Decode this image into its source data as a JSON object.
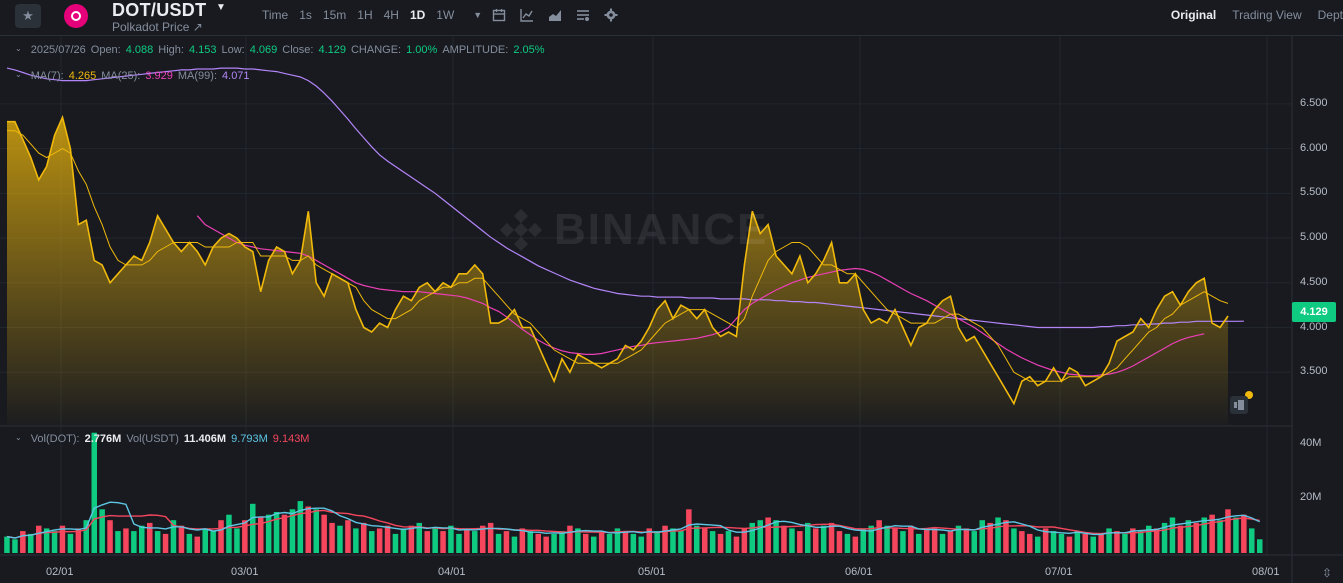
{
  "header": {
    "pair": "DOT/USDT",
    "subtitle": "Polkadot Price ↗",
    "intervals": [
      {
        "label": "Time",
        "active": false
      },
      {
        "label": "1s",
        "active": false
      },
      {
        "label": "15m",
        "active": false
      },
      {
        "label": "1H",
        "active": false
      },
      {
        "label": "4H",
        "active": false
      },
      {
        "label": "1D",
        "active": true
      },
      {
        "label": "1W",
        "active": false
      }
    ],
    "views": [
      {
        "label": "Original",
        "active": true
      },
      {
        "label": "Trading View",
        "active": false
      },
      {
        "label": "Dept",
        "active": false
      }
    ],
    "icons": [
      "star-icon",
      "calendar-icon",
      "indicator-icon",
      "chart-style-icon",
      "settings-list-icon",
      "gear-icon"
    ]
  },
  "ohlc": {
    "date": "2025/07/26",
    "open_label": "Open:",
    "open": "4.088",
    "high_label": "High:",
    "high": "4.153",
    "low_label": "Low:",
    "low": "4.069",
    "close_label": "Close:",
    "close": "4.129",
    "change_label": "CHANGE:",
    "change": "1.00%",
    "amplitude_label": "AMPLITUDE:",
    "amplitude": "2.05%"
  },
  "ma": {
    "ma7_label": "MA(7):",
    "ma7": "4.265",
    "ma25_label": "MA(25):",
    "ma25": "3.929",
    "ma99_label": "MA(99):",
    "ma99": "4.071"
  },
  "vol": {
    "dot_label": "Vol(DOT):",
    "dot": "2.776M",
    "usdt_label": "Vol(USDT)",
    "usdt": "11.406M",
    "ma1": "9.793M",
    "ma2": "9.143M"
  },
  "watermark": "BINANCE",
  "last_price": "4.129",
  "colors": {
    "up": "#0ecb81",
    "down": "#f6465d",
    "area": "#f0b90b",
    "ma25": "#eb40b5",
    "ma99": "#b385f8",
    "bg": "#181a20"
  },
  "chart_data": {
    "type": "area",
    "price_ticks": [
      "6.500",
      "6.000",
      "5.500",
      "5.000",
      "4.500",
      "4.000",
      "3.500"
    ],
    "ylim": [
      3.0,
      7.0
    ],
    "date_ticks": [
      "02/01",
      "03/01",
      "04/01",
      "05/01",
      "06/01",
      "07/01",
      "08/01"
    ],
    "close": [
      6.3,
      6.3,
      6.1,
      5.9,
      5.65,
      5.8,
      6.15,
      6.35,
      6.0,
      5.15,
      5.2,
      4.75,
      4.7,
      4.5,
      4.6,
      4.7,
      4.8,
      4.75,
      4.95,
      5.25,
      5.1,
      4.95,
      4.85,
      4.95,
      4.85,
      4.7,
      4.9,
      5.0,
      5.05,
      5.0,
      4.9,
      4.85,
      4.4,
      4.75,
      4.9,
      4.85,
      4.6,
      4.75,
      5.3,
      4.5,
      4.35,
      4.6,
      4.55,
      4.5,
      4.2,
      4.0,
      3.95,
      4.05,
      4.0,
      4.2,
      4.35,
      4.3,
      4.45,
      4.5,
      4.4,
      4.5,
      4.45,
      4.6,
      4.6,
      4.7,
      4.6,
      4.05,
      4.05,
      4.1,
      4.2,
      4.0,
      4.0,
      3.8,
      3.6,
      3.4,
      3.65,
      3.5,
      3.7,
      3.65,
      3.6,
      3.55,
      3.6,
      3.65,
      3.8,
      3.75,
      3.85,
      4.0,
      4.2,
      4.3,
      4.1,
      4.25,
      4.2,
      4.1,
      4.2,
      4.0,
      3.9,
      3.95,
      3.9,
      4.7,
      5.3,
      5.05,
      5.15,
      4.8,
      4.7,
      4.6,
      4.8,
      4.5,
      4.6,
      4.75,
      4.95,
      4.5,
      4.5,
      4.6,
      4.2,
      4.05,
      4.1,
      4.05,
      4.2,
      4.0,
      3.8,
      4.0,
      4.05,
      4.2,
      4.3,
      4.35,
      4.0,
      3.85,
      3.9,
      3.75,
      3.6,
      3.45,
      3.3,
      3.15,
      3.4,
      3.45,
      3.35,
      3.4,
      3.55,
      3.4,
      3.55,
      3.5,
      3.35,
      3.4,
      3.45,
      3.6,
      3.85,
      3.9,
      3.95,
      4.1,
      4.0,
      4.2,
      4.35,
      4.4,
      4.25,
      4.4,
      4.5,
      4.55,
      4.05,
      4.0,
      4.13
    ],
    "ma7": [
      6.2,
      6.2,
      6.15,
      6.05,
      5.95,
      5.9,
      5.95,
      6.0,
      5.95,
      5.75,
      5.6,
      5.35,
      5.15,
      4.9,
      4.75,
      4.7,
      4.7,
      4.7,
      4.75,
      4.85,
      4.9,
      4.95,
      4.95,
      4.95,
      4.95,
      4.9,
      4.9,
      4.9,
      4.9,
      4.95,
      4.95,
      4.95,
      4.8,
      4.8,
      4.8,
      4.8,
      4.75,
      4.75,
      4.8,
      4.7,
      4.65,
      4.6,
      4.55,
      4.5,
      4.45,
      4.3,
      4.2,
      4.15,
      4.1,
      4.1,
      4.15,
      4.2,
      4.3,
      4.35,
      4.4,
      4.45,
      4.45,
      4.5,
      4.5,
      4.55,
      4.55,
      4.45,
      4.35,
      4.25,
      4.15,
      4.1,
      4.05,
      3.95,
      3.85,
      3.75,
      3.7,
      3.65,
      3.6,
      3.6,
      3.6,
      3.6,
      3.6,
      3.6,
      3.65,
      3.7,
      3.75,
      3.85,
      3.95,
      4.05,
      4.1,
      4.15,
      4.2,
      4.2,
      4.2,
      4.15,
      4.1,
      4.05,
      4.0,
      4.1,
      4.35,
      4.55,
      4.75,
      4.85,
      4.9,
      4.95,
      4.95,
      4.9,
      4.8,
      4.7,
      4.7,
      4.65,
      4.6,
      4.6,
      4.5,
      4.4,
      4.3,
      4.2,
      4.15,
      4.1,
      4.05,
      4.05,
      4.05,
      4.05,
      4.1,
      4.15,
      4.15,
      4.1,
      4.05,
      4.0,
      3.9,
      3.8,
      3.65,
      3.5,
      3.45,
      3.4,
      3.4,
      3.4,
      3.4,
      3.4,
      3.45,
      3.45,
      3.45,
      3.45,
      3.45,
      3.5,
      3.55,
      3.65,
      3.75,
      3.85,
      3.95,
      4.0,
      4.1,
      4.15,
      4.25,
      4.3,
      4.35,
      4.4,
      4.35,
      4.3,
      4.27
    ],
    "ma25": [
      null,
      null,
      null,
      null,
      null,
      null,
      null,
      null,
      null,
      null,
      null,
      null,
      null,
      null,
      null,
      null,
      null,
      null,
      null,
      null,
      null,
      null,
      null,
      null,
      5.25,
      5.15,
      5.1,
      5.05,
      5.0,
      4.95,
      4.92,
      4.9,
      4.88,
      4.87,
      4.86,
      4.85,
      4.84,
      4.83,
      4.8,
      4.75,
      4.7,
      4.65,
      4.6,
      4.55,
      4.5,
      4.47,
      4.45,
      4.43,
      4.42,
      4.41,
      4.4,
      4.4,
      4.4,
      4.39,
      4.38,
      4.37,
      4.36,
      4.35,
      4.33,
      4.3,
      4.27,
      4.22,
      4.18,
      4.12,
      4.05,
      3.98,
      3.92,
      3.86,
      3.81,
      3.77,
      3.74,
      3.72,
      3.71,
      3.7,
      3.7,
      3.71,
      3.73,
      3.75,
      3.77,
      3.79,
      3.8,
      3.82,
      3.83,
      3.84,
      3.85,
      3.86,
      3.87,
      3.88,
      3.9,
      3.92,
      3.95,
      4.0,
      4.1,
      4.2,
      4.27,
      4.32,
      4.37,
      4.42,
      4.46,
      4.5,
      4.53,
      4.56,
      4.58,
      4.6,
      4.62,
      4.64,
      4.65,
      4.66,
      4.65,
      4.62,
      4.58,
      4.53,
      4.48,
      4.43,
      4.38,
      4.34,
      4.3,
      4.25,
      4.2,
      4.15,
      4.1,
      4.05,
      4.0,
      3.94,
      3.88,
      3.82,
      3.76,
      3.71,
      3.66,
      3.62,
      3.58,
      3.55,
      3.52,
      3.5,
      3.48,
      3.47,
      3.46,
      3.46,
      3.47,
      3.48,
      3.5,
      3.53,
      3.57,
      3.62,
      3.67,
      3.72,
      3.77,
      3.82,
      3.86,
      3.89,
      3.91,
      3.93
    ],
    "ma99": [
      6.9,
      6.88,
      6.85,
      6.82,
      6.8,
      6.78,
      6.77,
      6.76,
      6.76,
      6.76,
      6.76,
      6.77,
      6.78,
      6.79,
      6.8,
      6.81,
      6.82,
      6.83,
      6.84,
      6.85,
      6.86,
      6.87,
      6.88,
      6.88,
      6.89,
      6.89,
      6.89,
      6.9,
      6.9,
      6.9,
      6.89,
      6.89,
      6.88,
      6.87,
      6.86,
      6.84,
      6.82,
      6.8,
      6.76,
      6.7,
      6.62,
      6.53,
      6.43,
      6.33,
      6.22,
      6.12,
      6.02,
      5.93,
      5.86,
      5.8,
      5.74,
      5.68,
      5.62,
      5.56,
      5.5,
      5.43,
      5.36,
      5.29,
      5.22,
      5.15,
      5.08,
      5.01,
      4.95,
      4.89,
      4.84,
      4.79,
      4.74,
      4.69,
      4.65,
      4.61,
      4.57,
      4.53,
      4.5,
      4.47,
      4.44,
      4.42,
      4.4,
      4.38,
      4.37,
      4.36,
      4.35,
      4.35,
      4.34,
      4.34,
      4.34,
      4.34,
      4.33,
      4.33,
      4.33,
      4.33,
      4.32,
      4.32,
      4.32,
      4.32,
      4.31,
      4.31,
      4.31,
      4.3,
      4.3,
      4.29,
      4.29,
      4.28,
      4.28,
      4.27,
      4.26,
      4.25,
      4.24,
      4.23,
      4.22,
      4.21,
      4.2,
      4.19,
      4.18,
      4.17,
      4.16,
      4.15,
      4.14,
      4.13,
      4.12,
      4.11,
      4.1,
      4.09,
      4.08,
      4.07,
      4.06,
      4.05,
      4.04,
      4.03,
      4.02,
      4.01,
      4.0,
      4.0,
      4.0,
      4.0,
      4.0,
      4.0,
      4.0,
      4.0,
      4.01,
      4.01,
      4.02,
      4.02,
      4.03,
      4.03,
      4.04,
      4.04,
      4.05,
      4.05,
      4.06,
      4.06,
      4.07,
      4.07,
      4.07,
      4.07,
      4.07,
      4.07,
      4.071
    ],
    "volume": {
      "ticks": [
        "40M",
        "20M"
      ],
      "ylim": [
        0,
        45
      ],
      "values": [
        6,
        5,
        8,
        7,
        10,
        9,
        8,
        10,
        7,
        9,
        12,
        44,
        16,
        12,
        8,
        9,
        8,
        10,
        11,
        8,
        7,
        12,
        10,
        7,
        6,
        9,
        8,
        12,
        14,
        9,
        12,
        18,
        13,
        14,
        15,
        14,
        16,
        19,
        17,
        16,
        14,
        11,
        10,
        12,
        9,
        11,
        8,
        9,
        10,
        7,
        9,
        10,
        11,
        8,
        9,
        8,
        10,
        7,
        9,
        8,
        10,
        11,
        7,
        8,
        6,
        9,
        8,
        7,
        6,
        7,
        8,
        10,
        9,
        7,
        6,
        8,
        7,
        9,
        8,
        7,
        6,
        9,
        8,
        10,
        9,
        8,
        16,
        10,
        9,
        8,
        7,
        8,
        6,
        9,
        11,
        12,
        13,
        12,
        10,
        9,
        8,
        11,
        9,
        10,
        11,
        8,
        7,
        6,
        9,
        10,
        12,
        10,
        9,
        8,
        10,
        7,
        9,
        9,
        7,
        8,
        10,
        9,
        8,
        12,
        11,
        13,
        12,
        9,
        8,
        7,
        6,
        9,
        8,
        7,
        6,
        8,
        7,
        6,
        7,
        9,
        8,
        7,
        9,
        8,
        10,
        9,
        11,
        13,
        10,
        12,
        11,
        13,
        14,
        12,
        16,
        13,
        14,
        9,
        5
      ],
      "up": [
        1,
        1,
        0,
        1,
        0,
        1,
        1,
        0,
        1,
        0,
        1,
        1,
        1,
        0,
        1,
        0,
        1,
        1,
        0,
        1,
        0,
        1,
        0,
        1,
        0,
        1,
        1,
        0,
        1,
        1,
        0,
        1,
        0,
        1,
        1,
        0,
        1,
        1,
        0,
        1,
        0,
        0,
        1,
        0,
        1,
        0,
        1,
        0,
        0,
        1,
        1,
        0,
        1,
        0,
        1,
        0,
        1,
        1,
        0,
        1,
        0,
        0,
        1,
        0,
        1,
        0,
        1,
        0,
        0,
        1,
        1,
        0,
        1,
        0,
        1,
        0,
        1,
        1,
        0,
        1,
        1,
        0,
        1,
        0,
        1,
        1,
        0,
        1,
        0,
        1,
        0,
        1,
        0,
        0,
        1,
        1,
        0,
        1,
        0,
        1,
        0,
        1,
        0,
        1,
        0,
        0,
        1,
        0,
        1,
        1,
        0,
        1,
        0,
        1,
        0,
        1,
        0,
        0,
        1,
        0,
        1,
        0,
        1,
        1,
        0,
        1,
        0,
        1,
        0,
        0,
        1,
        0,
        1,
        1,
        0,
        1,
        0,
        1,
        0,
        1,
        0,
        1,
        0,
        1,
        1,
        0,
        1,
        1,
        0,
        1,
        0,
        1,
        0,
        1,
        0,
        1,
        0,
        1,
        1,
        0,
        1
      ]
    }
  }
}
